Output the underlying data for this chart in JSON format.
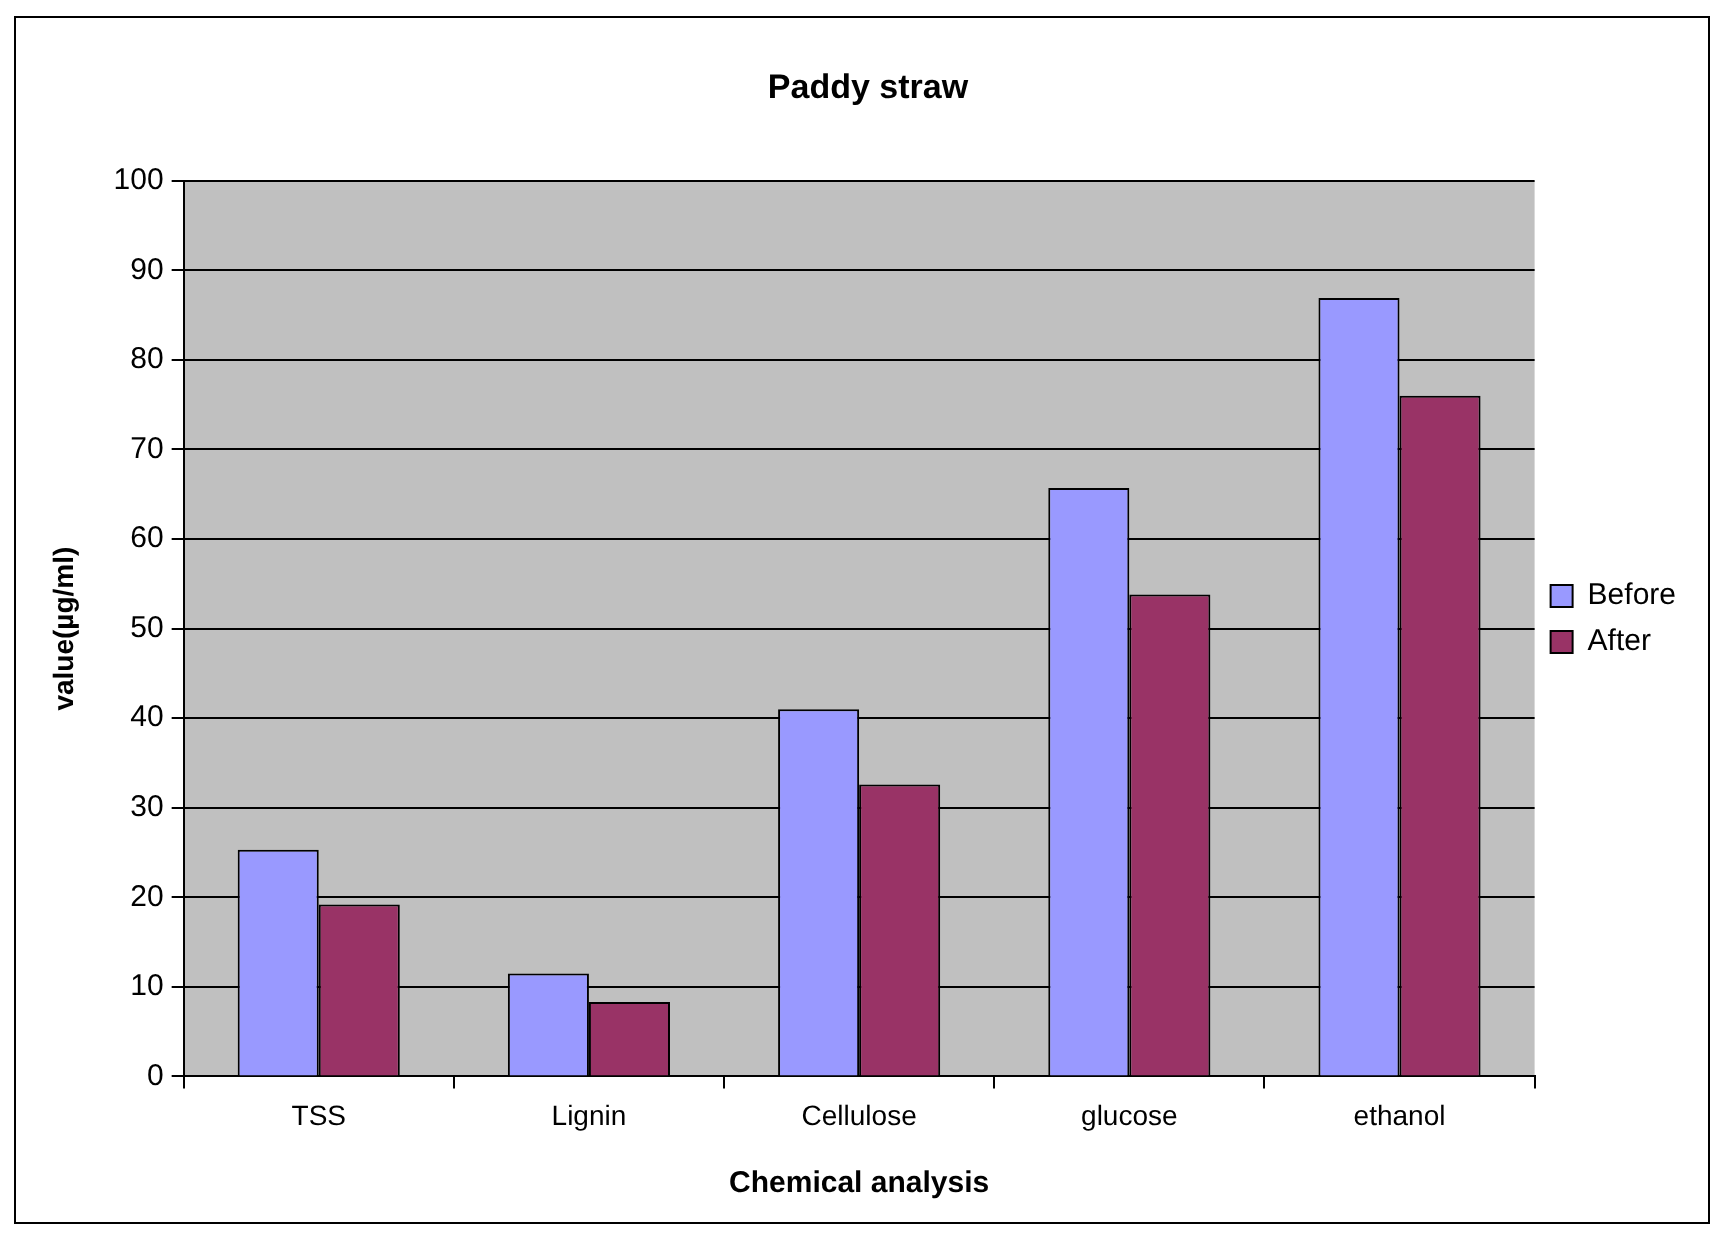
{
  "chart_data": {
    "type": "bar",
    "title": "Paddy straw",
    "xlabel": "Chemical analysis",
    "ylabel": "value(µg/ml)",
    "categories": [
      "TSS",
      "Lignin",
      "Cellulose",
      "glucose",
      "ethanol"
    ],
    "series": [
      {
        "name": "Before",
        "color": "#9999ff",
        "values": [
          25.3,
          11.5,
          41.0,
          65.7,
          86.9
        ]
      },
      {
        "name": "After",
        "color": "#993366",
        "values": [
          19.2,
          8.3,
          32.6,
          53.8,
          76.0
        ]
      }
    ],
    "ylim": [
      0,
      100
    ],
    "yticks": [
      0,
      10,
      20,
      30,
      40,
      50,
      60,
      70,
      80,
      90,
      100
    ],
    "grid": "y",
    "legend": "right"
  }
}
